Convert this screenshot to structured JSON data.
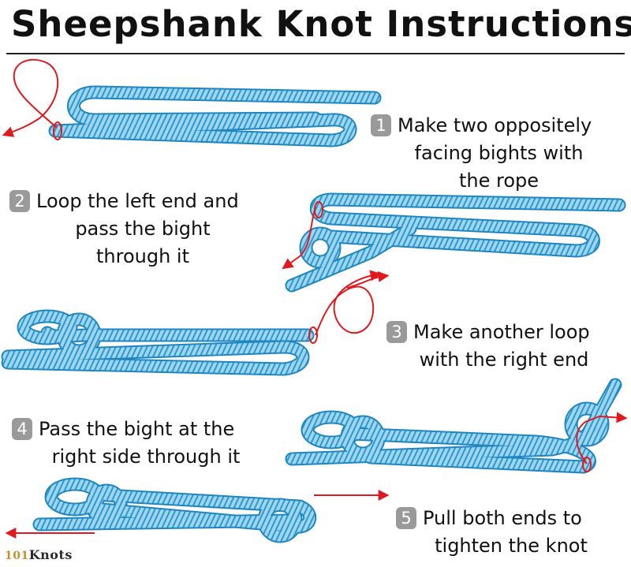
{
  "title": "Sheepshank Knot Instructions",
  "steps": [
    {
      "number": "1",
      "lines": [
        "Make two oppositely",
        "facing bights with",
        "the rope"
      ]
    },
    {
      "number": "2",
      "lines": [
        "Loop the left end and",
        "pass the bight",
        "through it"
      ]
    },
    {
      "number": "3",
      "lines": [
        "Make another loop",
        "with the right end"
      ]
    },
    {
      "number": "4",
      "lines": [
        "Pass the bight at the",
        "right side through it"
      ]
    },
    {
      "number": "5",
      "lines": [
        "Pull both ends to",
        "tighten the knot"
      ]
    }
  ],
  "logo": {
    "digits": "101",
    "word": "Knots"
  },
  "colors": {
    "rope": "#8ccde9",
    "rope_edge": "#2c98d0",
    "arrow": "#e0191e",
    "badge": "#9a9a9a",
    "text": "#111111"
  }
}
